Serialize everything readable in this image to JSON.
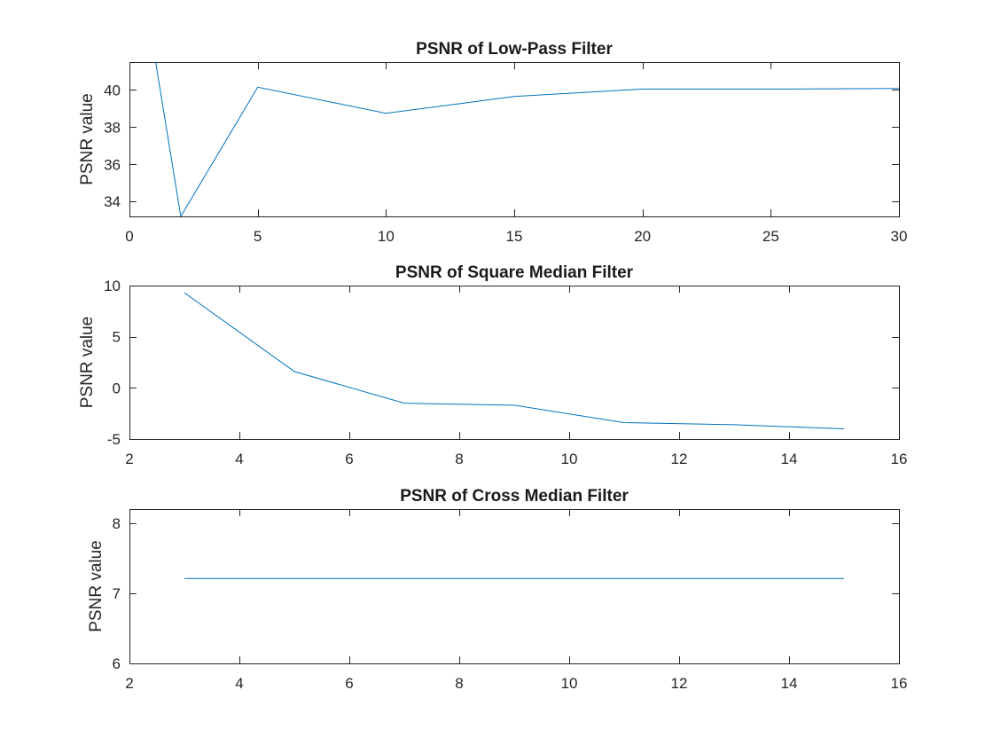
{
  "chart_data": [
    {
      "type": "line",
      "title": "PSNR of Low-Pass Filter",
      "xlabel": "",
      "ylabel": "PSNR value",
      "xlim": [
        0,
        30
      ],
      "ylim": [
        33.2,
        41.5
      ],
      "xticks": [
        0,
        5,
        10,
        15,
        20,
        25,
        30
      ],
      "yticks": [
        34,
        36,
        38,
        40
      ],
      "grid": false,
      "color": "#0072bd",
      "x": [
        1,
        2,
        5,
        10,
        15,
        20,
        25,
        30
      ],
      "y": [
        41.7,
        33.2,
        40.15,
        38.75,
        39.65,
        40.05,
        40.05,
        40.08
      ]
    },
    {
      "type": "line",
      "title": "PSNR of Square Median Filter",
      "xlabel": "",
      "ylabel": "PSNR value",
      "xlim": [
        2,
        16
      ],
      "ylim": [
        -5,
        10
      ],
      "xticks": [
        2,
        4,
        6,
        8,
        10,
        12,
        14,
        16
      ],
      "yticks": [
        -5,
        0,
        5,
        10
      ],
      "grid": false,
      "color": "#0072bd",
      "x": [
        3,
        5,
        7,
        9,
        11,
        13,
        15
      ],
      "y": [
        9.3,
        1.6,
        -1.5,
        -1.7,
        -3.4,
        -3.6,
        -4.0
      ]
    },
    {
      "type": "line",
      "title": "PSNR of Cross Median Filter",
      "xlabel": "",
      "ylabel": "PSNR value",
      "xlim": [
        2,
        16
      ],
      "ylim": [
        6,
        8.2
      ],
      "xticks": [
        2,
        4,
        6,
        8,
        10,
        12,
        14,
        16
      ],
      "yticks": [
        6,
        7,
        8
      ],
      "grid": false,
      "color": "#0072bd",
      "x": [
        3,
        5,
        7,
        9,
        11,
        13,
        15
      ],
      "y": [
        7.21,
        7.21,
        7.21,
        7.21,
        7.21,
        7.21,
        7.21
      ]
    }
  ]
}
